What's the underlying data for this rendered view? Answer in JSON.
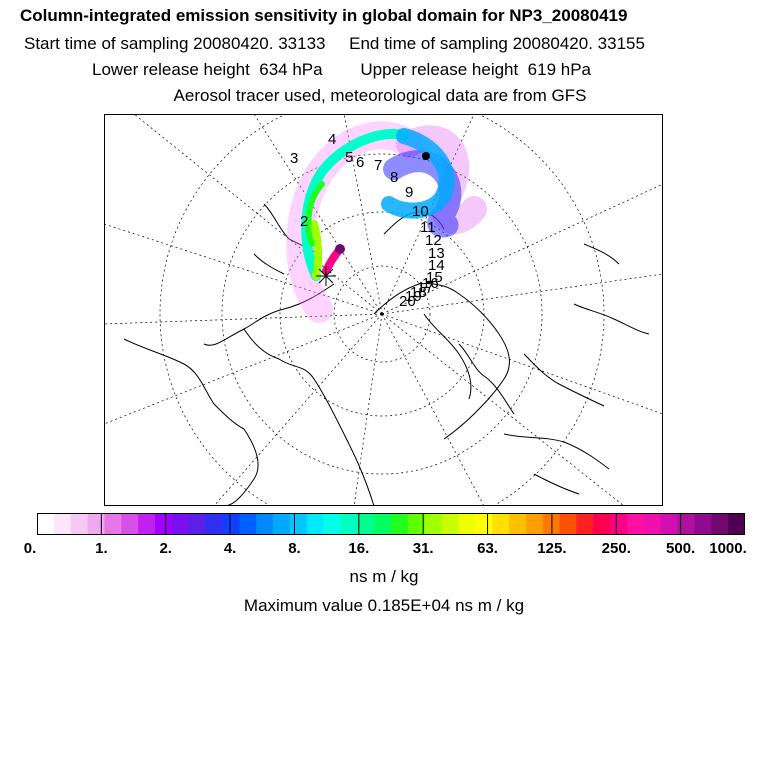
{
  "header": {
    "title": "Column-integrated emission sensitivity in global domain for NP3_20080419",
    "start_time": "Start time of sampling 20080420. 33133",
    "end_time": "End time of sampling 20080420. 33155",
    "lower_release": "Lower release height  634 hPa",
    "upper_release": "Upper release height  619 hPa",
    "tracer_line": "Aerosol tracer used, meteorological data are from GFS"
  },
  "map": {
    "projection": "polar stereographic",
    "trajectory_labels": [
      "2",
      "3",
      "4",
      "5",
      "6",
      "7",
      "8",
      "9",
      "10",
      "11",
      "12",
      "13",
      "14",
      "15",
      "16",
      "17",
      "18",
      "19",
      "20"
    ]
  },
  "colorbar": {
    "ticks": [
      "0.",
      "1.",
      "2.",
      "4.",
      "8.",
      "16.",
      "31.",
      "63.",
      "125.",
      "250.",
      "500.",
      "1000."
    ],
    "colors": [
      "#ffffff",
      "#fbe6fb",
      "#f6c8f6",
      "#f0a8f0",
      "#e678e6",
      "#d550e6",
      "#c020f0",
      "#a000ff",
      "#7a10f0",
      "#5a20e8",
      "#3030f0",
      "#1040ff",
      "#0060ff",
      "#0088ff",
      "#00aaff",
      "#00c8ff",
      "#00eaff",
      "#00ffe8",
      "#00ffc0",
      "#00ff90",
      "#00ff60",
      "#20ff20",
      "#60ff00",
      "#a0ff00",
      "#c8ff00",
      "#f0ff00",
      "#ffff00",
      "#ffe000",
      "#ffc000",
      "#ffa000",
      "#ff7800",
      "#ff5000",
      "#ff2020",
      "#ff0050",
      "#ff0088",
      "#ff10a0",
      "#f010b0",
      "#d010b0",
      "#b010a0",
      "#900a90",
      "#700870",
      "#500050"
    ],
    "unit": "ns m / kg"
  },
  "max_value": "Maximum value  0.185E+04 ns m / kg"
}
